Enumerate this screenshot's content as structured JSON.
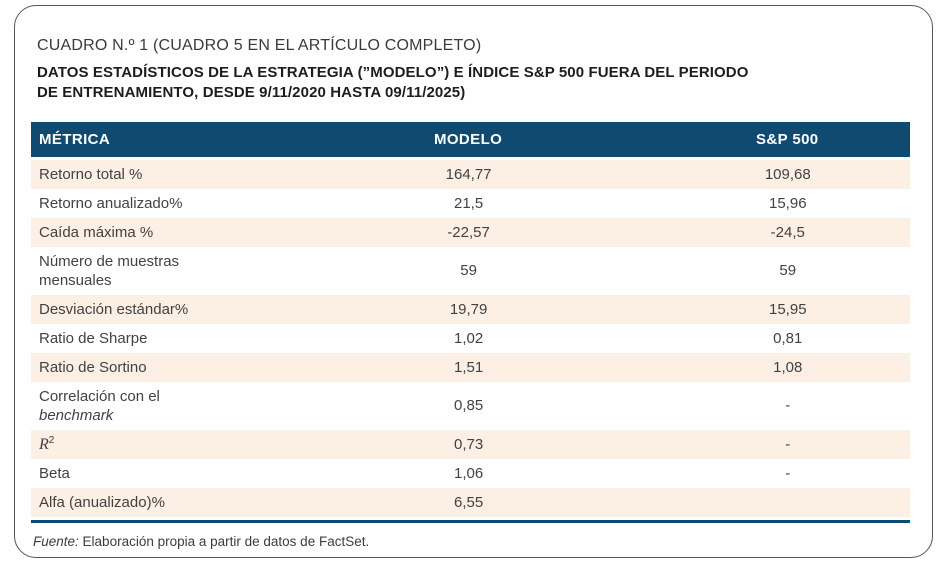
{
  "header": {
    "title": "CUADRO N.º 1 (CUADRO 5 EN EL ARTÍCULO COMPLETO)",
    "subtitle_line1": "DATOS ESTADÍSTICOS DE LA ESTRATEGIA (”MODELO”) E ÍNDICE S&P 500 FUERA DEL PERIODO",
    "subtitle_line2": "DE ENTRENAMIENTO, DESDE 9/11/2020 HASTA 09/11/2025)"
  },
  "table": {
    "columns": [
      "MÉTRICA",
      "MODELO",
      "S&P 500"
    ],
    "rows": [
      {
        "metric": [
          "Retorno total %"
        ],
        "modelo": "164,77",
        "sp500": "109,68"
      },
      {
        "metric": [
          "Retorno anualizado%"
        ],
        "modelo": "21,5",
        "sp500": "15,96"
      },
      {
        "metric": [
          "Caída máxima %"
        ],
        "modelo": "-22,57",
        "sp500": "-24,5"
      },
      {
        "metric": [
          "Número de muestras",
          "mensuales"
        ],
        "modelo": "59",
        "sp500": "59"
      },
      {
        "metric": [
          "Desviación estándar%"
        ],
        "modelo": "19,79",
        "sp500": "15,95"
      },
      {
        "metric": [
          "Ratio de Sharpe"
        ],
        "modelo": "1,02",
        "sp500": "0,81"
      },
      {
        "metric": [
          "Ratio de Sortino"
        ],
        "modelo": "1,51",
        "sp500": "1,08"
      },
      {
        "metric": [
          "Correlación con el",
          {
            "text": "benchmark",
            "style": "italic"
          }
        ],
        "modelo": "0,85",
        "sp500": "-"
      },
      {
        "metric": [
          {
            "text": "R",
            "style": "serif-italic",
            "sup": "2"
          }
        ],
        "modelo": "0,73",
        "sp500": "-"
      },
      {
        "metric": [
          "Beta"
        ],
        "modelo": "1,06",
        "sp500": "-"
      },
      {
        "metric": [
          "Alfa (anualizado)%"
        ],
        "modelo": "6,55",
        "sp500": ""
      }
    ]
  },
  "footer": {
    "source_label": "Fuente:",
    "source_text": "Elaboración propia a partir de datos de FactSet."
  },
  "colors": {
    "header_bg": "#114a70",
    "row_alt_bg": "#fcefe4",
    "accent_line": "#114a70"
  }
}
